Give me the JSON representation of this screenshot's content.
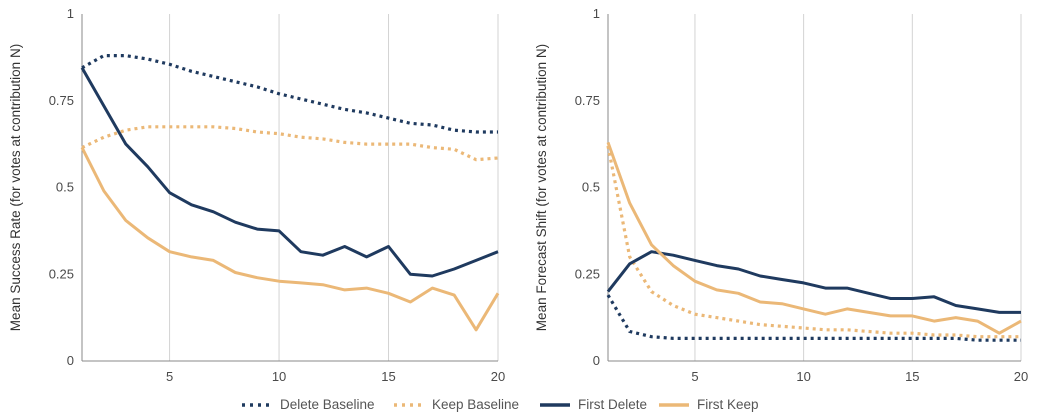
{
  "colors": {
    "delete": "#1f3a5f",
    "keep": "#ebb877",
    "grid": "#d3d3d3",
    "axis": "#888888"
  },
  "legend": [
    {
      "label": "Delete Baseline",
      "color": "#1f3a5f",
      "style": "dotted"
    },
    {
      "label": "Keep Baseline",
      "color": "#ebb877",
      "style": "dotted"
    },
    {
      "label": "First Delete",
      "color": "#1f3a5f",
      "style": "solid"
    },
    {
      "label": "First Keep",
      "color": "#ebb877",
      "style": "solid"
    }
  ],
  "chart_data": [
    {
      "type": "line",
      "ylabel": "Mean Success Rate (for votes at contribution N)",
      "xlabel": "",
      "xlim": [
        1,
        20
      ],
      "ylim": [
        0,
        1
      ],
      "xticks": [
        5,
        10,
        15,
        20
      ],
      "yticks": [
        0,
        0.25,
        0.5,
        0.75,
        1
      ],
      "ytick_labels": [
        "0",
        "0.25",
        "0.5",
        "0.75",
        "1"
      ],
      "grid": "vertical",
      "x": [
        1,
        2,
        3,
        4,
        5,
        6,
        7,
        8,
        9,
        10,
        11,
        12,
        13,
        14,
        15,
        16,
        17,
        18,
        19,
        20
      ],
      "series": [
        {
          "name": "Delete Baseline",
          "style": "dotted",
          "color": "#1f3a5f",
          "values": [
            0.845,
            0.88,
            0.88,
            0.87,
            0.855,
            0.835,
            0.82,
            0.805,
            0.79,
            0.77,
            0.755,
            0.74,
            0.725,
            0.715,
            0.7,
            0.685,
            0.68,
            0.665,
            0.66,
            0.66
          ]
        },
        {
          "name": "Keep Baseline",
          "style": "dotted",
          "color": "#ebb877",
          "values": [
            0.615,
            0.645,
            0.665,
            0.675,
            0.675,
            0.675,
            0.675,
            0.67,
            0.66,
            0.655,
            0.645,
            0.64,
            0.63,
            0.625,
            0.625,
            0.625,
            0.615,
            0.61,
            0.58,
            0.585
          ]
        },
        {
          "name": "First Delete",
          "style": "solid",
          "color": "#1f3a5f",
          "values": [
            0.845,
            0.735,
            0.625,
            0.56,
            0.485,
            0.45,
            0.43,
            0.4,
            0.38,
            0.375,
            0.315,
            0.305,
            0.33,
            0.3,
            0.33,
            0.25,
            0.245,
            0.265,
            0.29,
            0.315
          ]
        },
        {
          "name": "First Keep",
          "style": "solid",
          "color": "#ebb877",
          "values": [
            0.615,
            0.49,
            0.405,
            0.355,
            0.315,
            0.3,
            0.29,
            0.255,
            0.24,
            0.23,
            0.225,
            0.22,
            0.205,
            0.21,
            0.195,
            0.17,
            0.21,
            0.19,
            0.09,
            0.195
          ]
        }
      ]
    },
    {
      "type": "line",
      "ylabel": "Mean Forecast Shift (for votes at contribution N)",
      "xlabel": "",
      "xlim": [
        1,
        20
      ],
      "ylim": [
        0,
        1
      ],
      "xticks": [
        5,
        10,
        15,
        20
      ],
      "yticks": [
        0,
        0.25,
        0.5,
        0.75,
        1
      ],
      "ytick_labels": [
        "0",
        "0.25",
        "0.5",
        "0.75",
        "1"
      ],
      "grid": "vertical",
      "x": [
        1,
        2,
        3,
        4,
        5,
        6,
        7,
        8,
        9,
        10,
        11,
        12,
        13,
        14,
        15,
        16,
        17,
        18,
        19,
        20
      ],
      "series": [
        {
          "name": "Delete Baseline",
          "style": "dotted",
          "color": "#1f3a5f",
          "values": [
            0.19,
            0.085,
            0.07,
            0.065,
            0.065,
            0.065,
            0.065,
            0.065,
            0.065,
            0.065,
            0.065,
            0.065,
            0.065,
            0.065,
            0.065,
            0.065,
            0.065,
            0.06,
            0.06,
            0.06
          ]
        },
        {
          "name": "Keep Baseline",
          "style": "dotted",
          "color": "#ebb877",
          "values": [
            0.62,
            0.3,
            0.2,
            0.16,
            0.135,
            0.125,
            0.115,
            0.105,
            0.1,
            0.095,
            0.09,
            0.09,
            0.085,
            0.08,
            0.08,
            0.075,
            0.075,
            0.07,
            0.07,
            0.07
          ]
        },
        {
          "name": "First Delete",
          "style": "solid",
          "color": "#1f3a5f",
          "values": [
            0.2,
            0.28,
            0.315,
            0.305,
            0.29,
            0.275,
            0.265,
            0.245,
            0.235,
            0.225,
            0.21,
            0.21,
            0.195,
            0.18,
            0.18,
            0.185,
            0.16,
            0.15,
            0.14,
            0.14
          ]
        },
        {
          "name": "First Keep",
          "style": "solid",
          "color": "#ebb877",
          "values": [
            0.63,
            0.455,
            0.335,
            0.275,
            0.23,
            0.205,
            0.195,
            0.17,
            0.165,
            0.15,
            0.135,
            0.15,
            0.14,
            0.13,
            0.13,
            0.115,
            0.125,
            0.115,
            0.08,
            0.115
          ]
        }
      ]
    }
  ]
}
